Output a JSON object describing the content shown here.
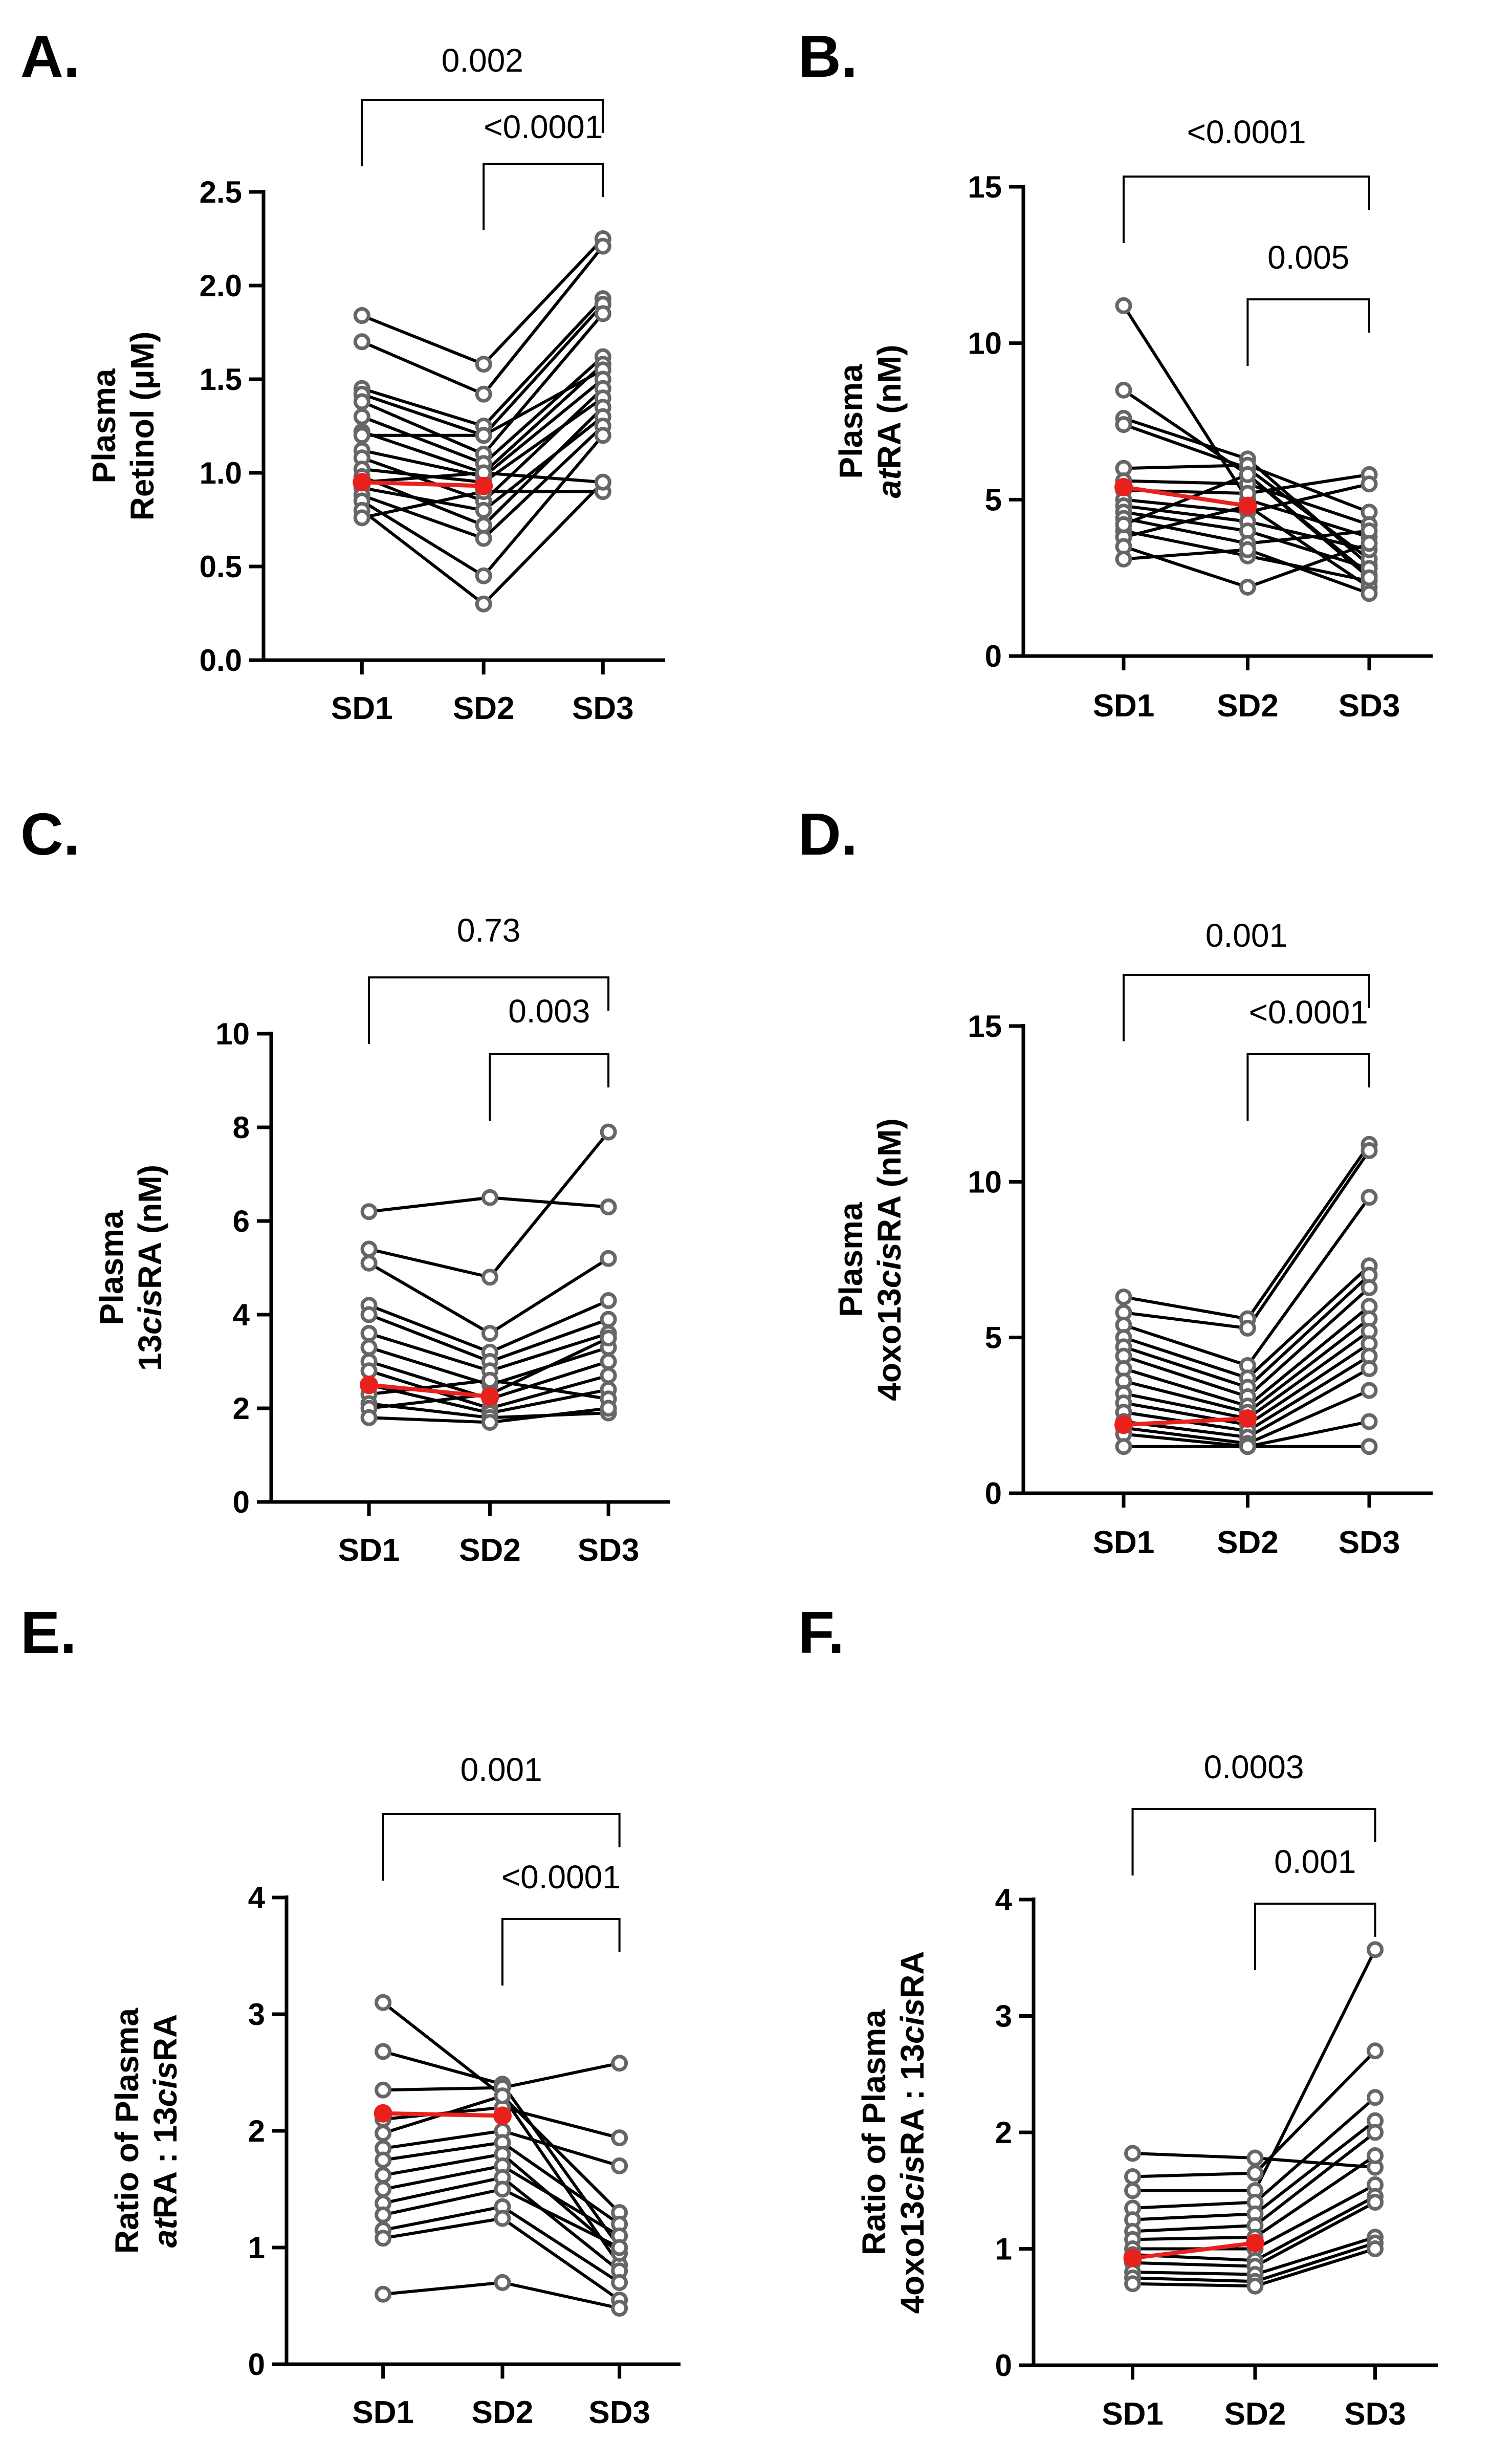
{
  "figure": {
    "panels": [
      "A.",
      "B.",
      "C.",
      "D.",
      "E.",
      "F."
    ]
  },
  "colors": {
    "subject_line": "#000000",
    "subject_marker_edge": "#666666",
    "mean": "#e8211d"
  },
  "chart_data": [
    {
      "panel": "A.",
      "type": "line",
      "ylabel_lines": [
        "Plasma",
        "Retinol (μM)"
      ],
      "ylim": [
        0,
        2.5
      ],
      "yticks": [
        0.0,
        0.5,
        1.0,
        1.5,
        2.0,
        2.5
      ],
      "ytick_labels": [
        "0.0",
        "0.5",
        "1.0",
        "1.5",
        "2.0",
        "2.5"
      ],
      "categories": [
        "SD1",
        "SD2",
        "SD3"
      ],
      "series": [
        {
          "name": "subject 1",
          "values": [
            1.84,
            1.58,
            2.25
          ]
        },
        {
          "name": "subject 2",
          "values": [
            1.7,
            1.42,
            2.21
          ]
        },
        {
          "name": "subject 3",
          "values": [
            1.45,
            1.25,
            1.93
          ]
        },
        {
          "name": "subject 4",
          "values": [
            1.42,
            1.2,
            1.9
          ]
        },
        {
          "name": "subject 5",
          "values": [
            1.38,
            1.1,
            1.85
          ]
        },
        {
          "name": "subject 6",
          "values": [
            1.3,
            1.05,
            1.62
          ]
        },
        {
          "name": "subject 7",
          "values": [
            1.22,
            1.0,
            1.58
          ]
        },
        {
          "name": "subject 8",
          "values": [
            1.2,
            1.2,
            1.55
          ]
        },
        {
          "name": "subject 9",
          "values": [
            1.12,
            0.98,
            1.5
          ]
        },
        {
          "name": "subject 10",
          "values": [
            1.08,
            0.85,
            1.45
          ]
        },
        {
          "name": "subject 11",
          "values": [
            1.02,
            0.95,
            1.4
          ]
        },
        {
          "name": "subject 12",
          "values": [
            0.98,
            0.72,
            1.35
          ]
        },
        {
          "name": "subject 13",
          "values": [
            0.92,
            0.8,
            1.3
          ]
        },
        {
          "name": "subject 14",
          "values": [
            0.88,
            0.65,
            1.25
          ]
        },
        {
          "name": "subject 15",
          "values": [
            0.85,
            0.45,
            1.2
          ]
        },
        {
          "name": "subject 16",
          "values": [
            0.8,
            0.3,
            0.95
          ]
        },
        {
          "name": "subject 17",
          "values": [
            0.76,
            0.9,
            0.9
          ]
        },
        {
          "name": "subject 18",
          "values": [
            0.95,
            1.0,
            0.95
          ]
        }
      ],
      "mean": {
        "name": "mean",
        "values": [
          0.95,
          0.93,
          null
        ]
      },
      "comparisons": [
        {
          "from": "SD1",
          "to": "SD3",
          "label": "0.002"
        },
        {
          "from": "SD2",
          "to": "SD3",
          "label": "<0.0001"
        }
      ]
    },
    {
      "panel": "B.",
      "type": "line",
      "ylabel_lines": [
        "Plasma",
        "atRA (nM)"
      ],
      "ylim": [
        0,
        15
      ],
      "yticks": [
        0,
        5,
        10,
        15
      ],
      "ytick_labels": [
        "0",
        "5",
        "10",
        "15"
      ],
      "categories": [
        "SD1",
        "SD2",
        "SD3"
      ],
      "series": [
        {
          "name": "subject 1",
          "values": [
            11.2,
            5.0,
            3.8
          ]
        },
        {
          "name": "subject 2",
          "values": [
            8.5,
            5.8,
            2.6
          ]
        },
        {
          "name": "subject 3",
          "values": [
            7.6,
            6.3,
            2.9
          ]
        },
        {
          "name": "subject 4",
          "values": [
            7.4,
            6.0,
            3.1
          ]
        },
        {
          "name": "subject 5",
          "values": [
            6.0,
            6.1,
            4.6
          ]
        },
        {
          "name": "subject 6",
          "values": [
            5.6,
            5.5,
            4.2
          ]
        },
        {
          "name": "subject 7",
          "values": [
            5.3,
            5.2,
            5.8
          ]
        },
        {
          "name": "subject 8",
          "values": [
            5.0,
            4.6,
            5.5
          ]
        },
        {
          "name": "subject 9",
          "values": [
            4.8,
            4.3,
            3.4
          ]
        },
        {
          "name": "subject 10",
          "values": [
            4.6,
            4.0,
            2.8
          ]
        },
        {
          "name": "subject 11",
          "values": [
            4.4,
            3.6,
            4.0
          ]
        },
        {
          "name": "subject 12",
          "values": [
            4.0,
            3.2,
            2.4
          ]
        },
        {
          "name": "subject 13",
          "values": [
            3.8,
            4.8,
            2.2
          ]
        },
        {
          "name": "subject 14",
          "values": [
            3.5,
            2.2,
            3.6
          ]
        },
        {
          "name": "subject 15",
          "values": [
            3.1,
            3.4,
            2.0
          ]
        },
        {
          "name": "subject 16",
          "values": [
            4.2,
            5.8,
            2.5
          ]
        }
      ],
      "mean": {
        "name": "mean",
        "values": [
          5.4,
          4.8,
          null
        ]
      },
      "comparisons": [
        {
          "from": "SD1",
          "to": "SD3",
          "label": "<0.0001"
        },
        {
          "from": "SD2",
          "to": "SD3",
          "label": "0.005"
        }
      ]
    },
    {
      "panel": "C.",
      "type": "line",
      "ylabel_lines": [
        "Plasma",
        "13cisRA (nM)"
      ],
      "ylim": [
        0,
        10
      ],
      "yticks": [
        0,
        2,
        4,
        6,
        8,
        10
      ],
      "ytick_labels": [
        "0",
        "2",
        "4",
        "6",
        "8",
        "10"
      ],
      "categories": [
        "SD1",
        "SD2",
        "SD3"
      ],
      "series": [
        {
          "name": "subject 1",
          "values": [
            6.2,
            6.5,
            6.3
          ]
        },
        {
          "name": "subject 2",
          "values": [
            5.4,
            4.8,
            7.9
          ]
        },
        {
          "name": "subject 3",
          "values": [
            5.1,
            3.6,
            5.2
          ]
        },
        {
          "name": "subject 4",
          "values": [
            4.2,
            3.2,
            4.3
          ]
        },
        {
          "name": "subject 5",
          "values": [
            4.0,
            3.0,
            3.9
          ]
        },
        {
          "name": "subject 6",
          "values": [
            3.6,
            2.8,
            3.6
          ]
        },
        {
          "name": "subject 7",
          "values": [
            3.3,
            2.5,
            3.3
          ]
        },
        {
          "name": "subject 8",
          "values": [
            3.0,
            2.2,
            3.0
          ]
        },
        {
          "name": "subject 9",
          "values": [
            2.8,
            2.0,
            2.7
          ]
        },
        {
          "name": "subject 10",
          "values": [
            2.5,
            1.9,
            2.4
          ]
        },
        {
          "name": "subject 11",
          "values": [
            2.3,
            2.6,
            2.2
          ]
        },
        {
          "name": "subject 12",
          "values": [
            2.1,
            1.8,
            1.9
          ]
        },
        {
          "name": "subject 13",
          "values": [
            2.0,
            2.3,
            3.5
          ]
        },
        {
          "name": "subject 14",
          "values": [
            1.8,
            1.7,
            2.0
          ]
        }
      ],
      "mean": {
        "name": "mean",
        "values": [
          2.5,
          2.25,
          null
        ]
      },
      "comparisons": [
        {
          "from": "SD1",
          "to": "SD3",
          "label": "0.73"
        },
        {
          "from": "SD2",
          "to": "SD3",
          "label": "0.003"
        }
      ]
    },
    {
      "panel": "D.",
      "type": "line",
      "ylabel_lines": [
        "Plasma",
        "4oxo13cisRA (nM)"
      ],
      "ylim": [
        0,
        15
      ],
      "yticks": [
        0,
        5,
        10,
        15
      ],
      "ytick_labels": [
        "0",
        "5",
        "10",
        "15"
      ],
      "categories": [
        "SD1",
        "SD2",
        "SD3"
      ],
      "series": [
        {
          "name": "subject 1",
          "values": [
            6.3,
            5.6,
            11.2
          ]
        },
        {
          "name": "subject 2",
          "values": [
            5.8,
            5.3,
            11.0
          ]
        },
        {
          "name": "subject 3",
          "values": [
            5.4,
            4.1,
            9.5
          ]
        },
        {
          "name": "subject 4",
          "values": [
            5.0,
            3.7,
            7.3
          ]
        },
        {
          "name": "subject 5",
          "values": [
            4.7,
            3.4,
            7.0
          ]
        },
        {
          "name": "subject 6",
          "values": [
            4.4,
            3.1,
            6.6
          ]
        },
        {
          "name": "subject 7",
          "values": [
            4.0,
            2.8,
            6.0
          ]
        },
        {
          "name": "subject 8",
          "values": [
            3.6,
            2.6,
            5.6
          ]
        },
        {
          "name": "subject 9",
          "values": [
            3.2,
            2.4,
            5.2
          ]
        },
        {
          "name": "subject 10",
          "values": [
            2.9,
            2.2,
            4.8
          ]
        },
        {
          "name": "subject 11",
          "values": [
            2.6,
            2.0,
            4.4
          ]
        },
        {
          "name": "subject 12",
          "values": [
            2.3,
            1.8,
            4.0
          ]
        },
        {
          "name": "subject 13",
          "values": [
            2.1,
            1.6,
            3.3
          ]
        },
        {
          "name": "subject 14",
          "values": [
            1.9,
            1.5,
            2.3
          ]
        },
        {
          "name": "subject 15",
          "values": [
            1.5,
            1.5,
            1.5
          ]
        }
      ],
      "mean": {
        "name": "mean",
        "values": [
          2.2,
          2.4,
          null
        ]
      },
      "comparisons": [
        {
          "from": "SD1",
          "to": "SD3",
          "label": "0.001"
        },
        {
          "from": "SD2",
          "to": "SD3",
          "label": "<0.0001"
        }
      ]
    },
    {
      "panel": "E.",
      "type": "line",
      "ylabel_lines": [
        "Ratio of Plasma",
        "atRA : 13cisRA"
      ],
      "ylim": [
        0,
        4
      ],
      "yticks": [
        0,
        1,
        2,
        3,
        4
      ],
      "ytick_labels": [
        "0",
        "1",
        "2",
        "3",
        "4"
      ],
      "categories": [
        "SD1",
        "SD2",
        "SD3"
      ],
      "series": [
        {
          "name": "subject 1",
          "values": [
            3.1,
            2.3,
            1.3
          ]
        },
        {
          "name": "subject 2",
          "values": [
            2.68,
            2.4,
            1.0
          ]
        },
        {
          "name": "subject 3",
          "values": [
            2.35,
            2.37,
            2.58
          ]
        },
        {
          "name": "subject 4",
          "values": [
            2.1,
            2.2,
            1.94
          ]
        },
        {
          "name": "subject 5",
          "values": [
            1.98,
            2.3,
            0.85
          ]
        },
        {
          "name": "subject 6",
          "values": [
            1.85,
            2.0,
            1.7
          ]
        },
        {
          "name": "subject 7",
          "values": [
            1.75,
            1.9,
            1.2
          ]
        },
        {
          "name": "subject 8",
          "values": [
            1.62,
            1.8,
            0.95
          ]
        },
        {
          "name": "subject 9",
          "values": [
            1.5,
            1.7,
            1.1
          ]
        },
        {
          "name": "subject 10",
          "values": [
            1.38,
            1.6,
            0.8
          ]
        },
        {
          "name": "subject 11",
          "values": [
            1.28,
            1.5,
            1.0
          ]
        },
        {
          "name": "subject 12",
          "values": [
            1.15,
            1.35,
            0.7
          ]
        },
        {
          "name": "subject 13",
          "values": [
            1.08,
            1.25,
            0.55
          ]
        },
        {
          "name": "subject 14",
          "values": [
            0.6,
            0.7,
            0.48
          ]
        }
      ],
      "mean": {
        "name": "mean",
        "values": [
          2.15,
          2.13,
          null
        ]
      },
      "comparisons": [
        {
          "from": "SD1",
          "to": "SD3",
          "label": "0.001"
        },
        {
          "from": "SD2",
          "to": "SD3",
          "label": "<0.0001"
        }
      ]
    },
    {
      "panel": "F.",
      "type": "line",
      "ylabel_lines": [
        "Ratio of Plasma",
        "4oxo13cisRA : 13cisRA"
      ],
      "ylim": [
        0,
        4
      ],
      "yticks": [
        0,
        1,
        2,
        3,
        4
      ],
      "ytick_labels": [
        "0",
        "1",
        "2",
        "3",
        "4"
      ],
      "categories": [
        "SD1",
        "SD2",
        "SD3"
      ],
      "series": [
        {
          "name": "subject 1",
          "values": [
            1.82,
            1.78,
            1.7
          ]
        },
        {
          "name": "subject 2",
          "values": [
            1.62,
            1.65,
            2.7
          ]
        },
        {
          "name": "subject 3",
          "values": [
            1.5,
            1.5,
            3.57
          ]
        },
        {
          "name": "subject 4",
          "values": [
            1.35,
            1.4,
            2.3
          ]
        },
        {
          "name": "subject 5",
          "values": [
            1.25,
            1.3,
            2.1
          ]
        },
        {
          "name": "subject 6",
          "values": [
            1.15,
            1.2,
            2.0
          ]
        },
        {
          "name": "subject 7",
          "values": [
            1.08,
            1.1,
            1.8
          ]
        },
        {
          "name": "subject 8",
          "values": [
            1.0,
            1.0,
            1.55
          ]
        },
        {
          "name": "subject 9",
          "values": [
            0.95,
            0.9,
            1.45
          ]
        },
        {
          "name": "subject 10",
          "values": [
            0.88,
            0.85,
            1.4
          ]
        },
        {
          "name": "subject 11",
          "values": [
            0.8,
            0.78,
            1.1
          ]
        },
        {
          "name": "subject 12",
          "values": [
            0.75,
            0.72,
            1.05
          ]
        },
        {
          "name": "subject 13",
          "values": [
            0.7,
            0.68,
            1.0
          ]
        }
      ],
      "mean": {
        "name": "mean",
        "values": [
          0.92,
          1.05,
          null
        ]
      },
      "comparisons": [
        {
          "from": "SD1",
          "to": "SD3",
          "label": "0.0003"
        },
        {
          "from": "SD2",
          "to": "SD3",
          "label": "0.001"
        }
      ]
    }
  ]
}
